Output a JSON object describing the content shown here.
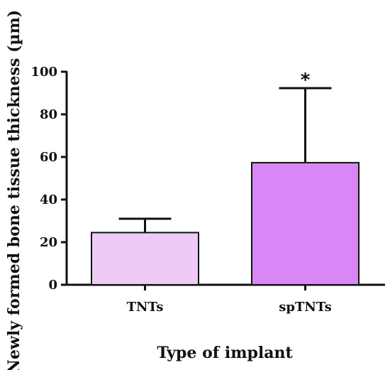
{
  "chart_data": {
    "type": "bar",
    "title": "",
    "xlabel": "Type of implant",
    "ylabel": "Newly formed bone tissue thickness (µm)",
    "categories": [
      "TNTs",
      "spTNTs"
    ],
    "values": [
      24.5,
      57.3
    ],
    "error_upper": [
      31.0,
      92.3
    ],
    "annotations": [
      "",
      "*"
    ],
    "bar_colors": [
      "#eecbf5",
      "#d987f7"
    ],
    "ylim": [
      0,
      100
    ],
    "yticks": [
      0,
      20,
      40,
      60,
      80,
      100
    ],
    "grid": false,
    "legend": "none"
  }
}
